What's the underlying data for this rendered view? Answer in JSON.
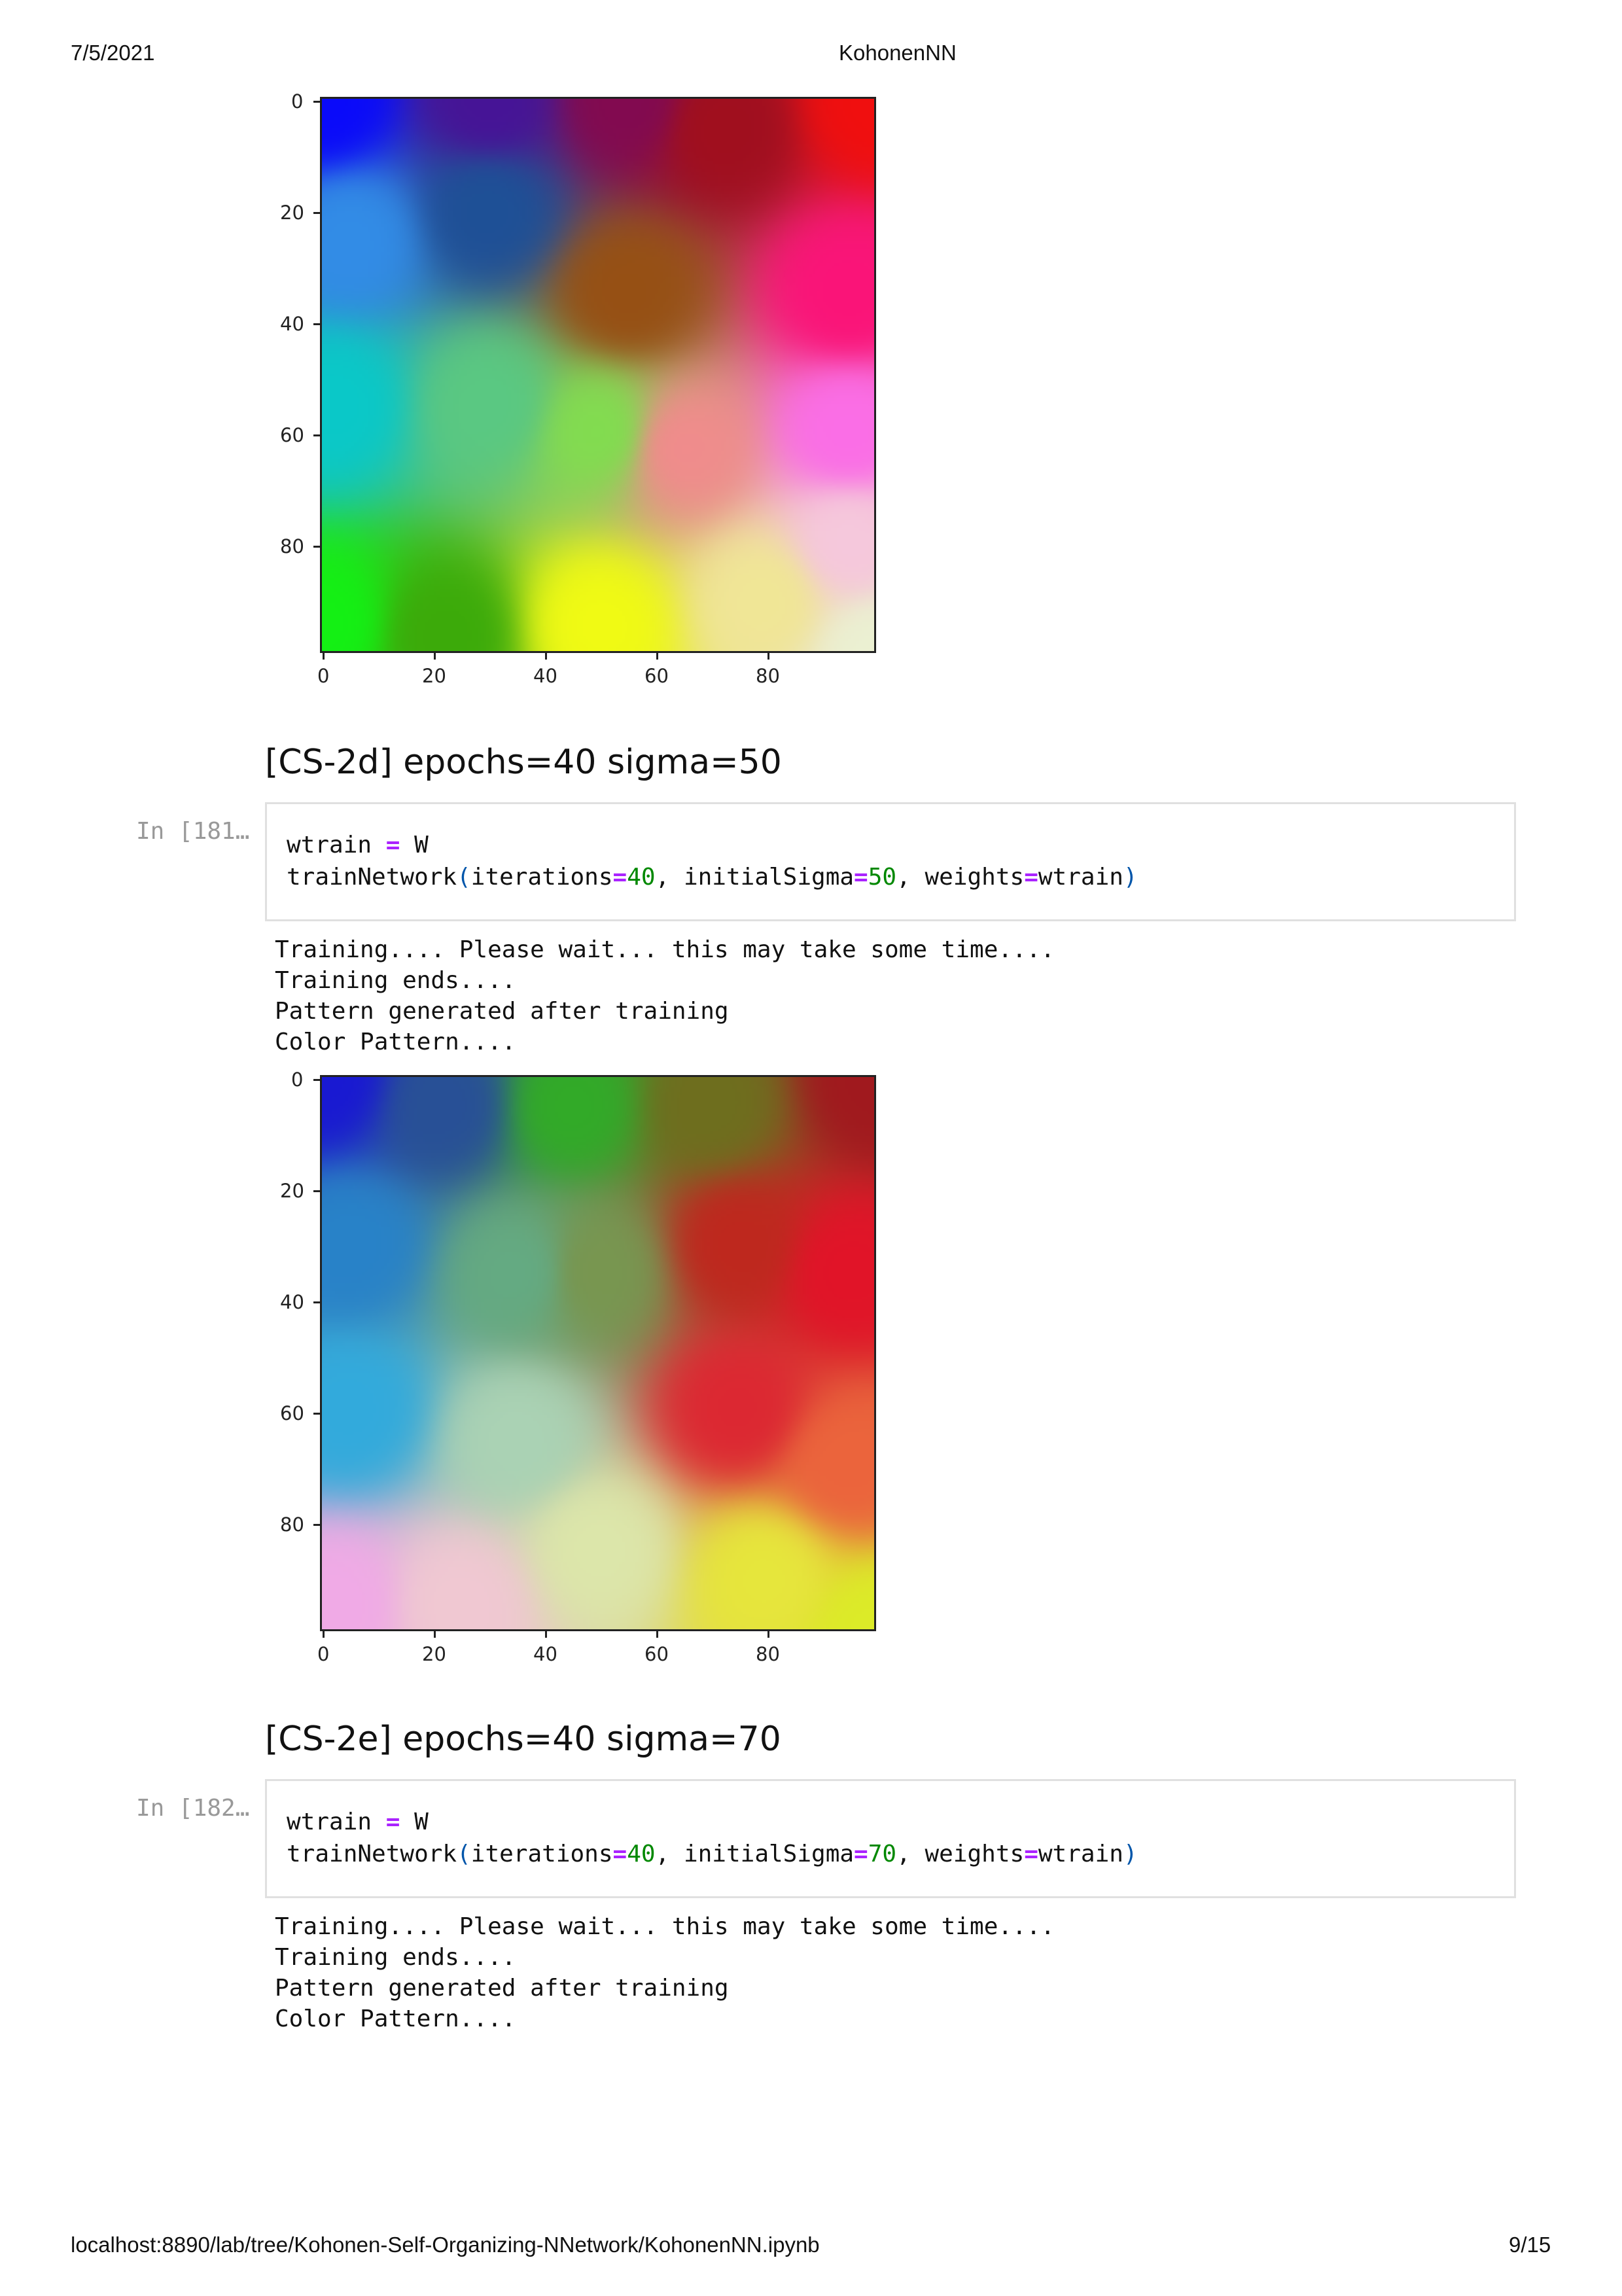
{
  "page_header": {
    "date": "7/5/2021",
    "title": "KohonenNN"
  },
  "page_footer": {
    "url": "localhost:8890/lab/tree/Kohonen-Self-Organizing-NNetwork/KohonenNN.ipynb",
    "page": "9/15"
  },
  "plots": [
    {
      "yticks": [
        "0",
        "20",
        "40",
        "60",
        "80"
      ],
      "xticks": [
        "0",
        "20",
        "40",
        "60",
        "80"
      ]
    },
    {
      "yticks": [
        "0",
        "20",
        "40",
        "60",
        "80"
      ],
      "xticks": [
        "0",
        "20",
        "40",
        "60",
        "80"
      ]
    }
  ],
  "sections": [
    {
      "heading": "[CS-2d] epochs=40 sigma=50",
      "prompt": "In [181…",
      "code": {
        "line1": {
          "var": "wtrain",
          "op": "=",
          "val": "W"
        },
        "line2": {
          "fn": "trainNetwork",
          "open": "(",
          "a1": "iterations",
          "eq1": "=",
          "v1": "40",
          "c1": ",",
          "a2": "initialSigma",
          "eq2": "=",
          "v2": "50",
          "c2": ",",
          "a3": "weights",
          "eq3": "=",
          "v3": "wtrain",
          "close": ")"
        }
      },
      "output": [
        "Training.... Please wait... this may take some time....",
        "Training ends....",
        "Pattern generated after training",
        "Color Pattern...."
      ]
    },
    {
      "heading": "[CS-2e] epochs=40 sigma=70",
      "prompt": "In [182…",
      "code": {
        "line1": {
          "var": "wtrain",
          "op": "=",
          "val": "W"
        },
        "line2": {
          "fn": "trainNetwork",
          "open": "(",
          "a1": "iterations",
          "eq1": "=",
          "v1": "40",
          "c1": ",",
          "a2": "initialSigma",
          "eq2": "=",
          "v2": "70",
          "c2": ",",
          "a3": "weights",
          "eq3": "=",
          "v3": "wtrain",
          "close": ")"
        }
      },
      "output": [
        "Training.... Please wait... this may take some time....",
        "Training ends....",
        "Pattern generated after training",
        "Color Pattern...."
      ]
    }
  ]
}
